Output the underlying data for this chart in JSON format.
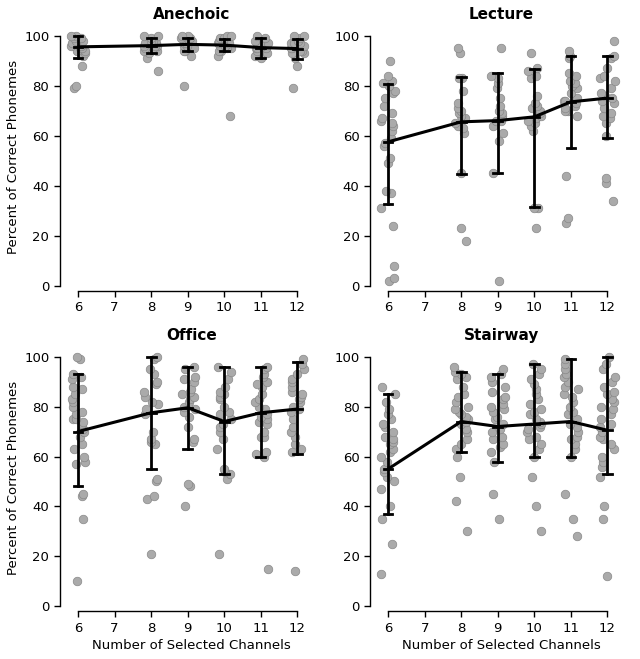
{
  "titles": [
    "Anechoic",
    "Lecture",
    "Office",
    "Stairway"
  ],
  "xlabel": "Number of Selected Channels",
  "ylabel": "Percent of Correct Phonemes",
  "xlim": [
    5.5,
    12.7
  ],
  "ylim": [
    -2,
    105
  ],
  "xticks": [
    6,
    7,
    8,
    9,
    10,
    11,
    12
  ],
  "yticks": [
    0,
    20,
    40,
    60,
    80,
    100
  ],
  "channels": [
    6,
    8,
    9,
    10,
    11,
    12
  ],
  "dot_color": "#aaaaaa",
  "dot_edge_color": "#888888",
  "line_color": "#000000",
  "scatter_data": {
    "Anechoic": {
      "6": [
        88,
        79,
        92,
        93,
        94,
        94,
        95,
        95,
        96,
        96,
        96,
        97,
        97,
        98,
        98,
        99,
        99,
        100,
        100,
        80
      ],
      "8": [
        86,
        91,
        93,
        94,
        94,
        95,
        95,
        96,
        96,
        96,
        97,
        97,
        98,
        98,
        99,
        100,
        100
      ],
      "9": [
        80,
        92,
        94,
        94,
        95,
        95,
        96,
        96,
        97,
        97,
        98,
        98,
        99,
        99,
        100,
        100
      ],
      "10": [
        92,
        94,
        94,
        95,
        95,
        96,
        96,
        97,
        97,
        97,
        98,
        98,
        99,
        99,
        100,
        100,
        68
      ],
      "11": [
        91,
        92,
        93,
        94,
        94,
        95,
        95,
        95,
        96,
        96,
        97,
        97,
        98,
        99,
        100
      ],
      "12": [
        79,
        88,
        91,
        93,
        93,
        94,
        94,
        95,
        95,
        96,
        96,
        97,
        97,
        97,
        98,
        99,
        100,
        100
      ]
    },
    "Lecture": {
      "6": [
        2,
        3,
        8,
        24,
        31,
        37,
        38,
        49,
        51,
        56,
        57,
        59,
        62,
        64,
        65,
        66,
        67,
        69,
        72,
        75,
        77,
        78,
        80,
        81,
        82,
        84,
        90
      ],
      "8": [
        18,
        23,
        45,
        61,
        63,
        64,
        65,
        67,
        68,
        69,
        70,
        71,
        73,
        78,
        83,
        83,
        93,
        95
      ],
      "9": [
        2,
        45,
        58,
        61,
        64,
        66,
        66,
        67,
        68,
        69,
        70,
        72,
        75,
        79,
        81,
        83,
        84,
        95
      ],
      "10": [
        23,
        31,
        31,
        62,
        64,
        65,
        66,
        67,
        68,
        69,
        70,
        71,
        72,
        73,
        76,
        83,
        84,
        86,
        87,
        93
      ],
      "11": [
        25,
        27,
        44,
        68,
        70,
        70,
        71,
        72,
        73,
        74,
        74,
        75,
        77,
        79,
        80,
        81,
        82,
        84,
        85,
        91,
        92,
        94
      ],
      "12": [
        34,
        41,
        43,
        60,
        65,
        67,
        68,
        69,
        71,
        73,
        74,
        75,
        76,
        77,
        79,
        82,
        83,
        84,
        87,
        91,
        92,
        98
      ]
    },
    "Office": {
      "6": [
        10,
        35,
        44,
        45,
        57,
        58,
        60,
        63,
        65,
        68,
        70,
        71,
        73,
        74,
        75,
        75,
        77,
        78,
        80,
        82,
        83,
        85,
        87,
        88,
        91,
        92,
        93,
        99,
        100
      ],
      "8": [
        21,
        43,
        44,
        50,
        51,
        65,
        66,
        67,
        70,
        77,
        79,
        81,
        82,
        84,
        86,
        89,
        90,
        93,
        95,
        99,
        100
      ],
      "9": [
        40,
        48,
        49,
        66,
        67,
        72,
        76,
        78,
        79,
        80,
        82,
        83,
        84,
        85,
        86,
        87,
        90,
        91,
        92,
        95,
        96
      ],
      "10": [
        21,
        51,
        53,
        54,
        55,
        63,
        67,
        70,
        72,
        73,
        75,
        77,
        78,
        80,
        83,
        84,
        85,
        86,
        88,
        91,
        94,
        96
      ],
      "11": [
        15,
        60,
        61,
        62,
        68,
        68,
        70,
        73,
        74,
        75,
        76,
        77,
        79,
        80,
        82,
        83,
        85,
        88,
        89,
        90,
        92,
        93,
        95,
        96
      ],
      "12": [
        14,
        62,
        63,
        65,
        68,
        70,
        72,
        75,
        78,
        79,
        80,
        82,
        83,
        84,
        85,
        86,
        88,
        90,
        91,
        93,
        95,
        97,
        99
      ]
    },
    "Stairway": {
      "6": [
        13,
        25,
        35,
        40,
        47,
        50,
        52,
        54,
        55,
        58,
        60,
        62,
        63,
        65,
        66,
        67,
        68,
        70,
        72,
        73,
        75,
        77,
        79,
        82,
        85,
        88
      ],
      "8": [
        30,
        42,
        52,
        60,
        63,
        65,
        67,
        70,
        71,
        73,
        74,
        75,
        76,
        77,
        78,
        79,
        80,
        82,
        84,
        85,
        88,
        91,
        92,
        93,
        94,
        96
      ],
      "9": [
        35,
        45,
        58,
        62,
        64,
        65,
        67,
        68,
        70,
        71,
        73,
        75,
        76,
        78,
        79,
        80,
        81,
        83,
        84,
        86,
        88,
        90,
        92,
        93,
        95
      ],
      "10": [
        30,
        40,
        52,
        60,
        63,
        65,
        67,
        68,
        70,
        71,
        72,
        73,
        74,
        75,
        77,
        78,
        79,
        81,
        83,
        85,
        87,
        89,
        91,
        93,
        95,
        97
      ],
      "11": [
        28,
        35,
        45,
        60,
        63,
        65,
        67,
        68,
        70,
        72,
        73,
        75,
        77,
        78,
        80,
        82,
        84,
        85,
        87,
        88,
        90,
        92,
        93,
        95,
        97,
        99
      ],
      "12": [
        12,
        35,
        40,
        52,
        56,
        58,
        60,
        63,
        65,
        67,
        68,
        70,
        72,
        73,
        75,
        77,
        79,
        80,
        82,
        83,
        85,
        86,
        88,
        90,
        92,
        95,
        97,
        100
      ]
    }
  },
  "mean_data": {
    "Anechoic": {
      "6": 95.5,
      "8": 96.0,
      "9": 96.5,
      "10": 96.2,
      "11": 95.2,
      "12": 94.8
    },
    "Lecture": {
      "6": 57.5,
      "8": 65.5,
      "9": 66.0,
      "10": 67.5,
      "11": 73.5,
      "12": 75.0
    },
    "Office": {
      "6": 70.0,
      "8": 77.5,
      "9": 79.5,
      "10": 74.0,
      "11": 77.5,
      "12": 79.0
    },
    "Stairway": {
      "6": 55.0,
      "8": 74.0,
      "9": 72.0,
      "10": 73.0,
      "11": 74.0,
      "12": 70.5
    }
  },
  "errorbar_data": {
    "Anechoic": {
      "6": [
        4.5,
        4.5
      ],
      "8": [
        3.0,
        3.0
      ],
      "9": [
        2.5,
        2.5
      ],
      "10": [
        2.5,
        2.5
      ],
      "11": [
        4.0,
        4.0
      ],
      "12": [
        4.0,
        4.0
      ]
    },
    "Lecture": {
      "6": [
        25.0,
        23.0
      ],
      "8": [
        21.0,
        18.0
      ],
      "9": [
        21.0,
        19.0
      ],
      "10": [
        36.0,
        19.0
      ],
      "11": [
        18.5,
        18.5
      ],
      "12": [
        16.0,
        17.0
      ]
    },
    "Office": {
      "6": [
        22.0,
        23.0
      ],
      "8": [
        22.5,
        22.5
      ],
      "9": [
        16.5,
        16.5
      ],
      "10": [
        21.0,
        22.0
      ],
      "11": [
        17.5,
        18.5
      ],
      "12": [
        18.0,
        19.0
      ]
    },
    "Stairway": {
      "6": [
        18.0,
        30.0
      ],
      "8": [
        12.0,
        20.0
      ],
      "9": [
        14.0,
        21.0
      ],
      "10": [
        13.0,
        24.0
      ],
      "11": [
        14.0,
        25.0
      ],
      "12": [
        17.5,
        29.5
      ]
    }
  },
  "figsize": [
    6.4,
    6.59
  ],
  "dpi": 100
}
